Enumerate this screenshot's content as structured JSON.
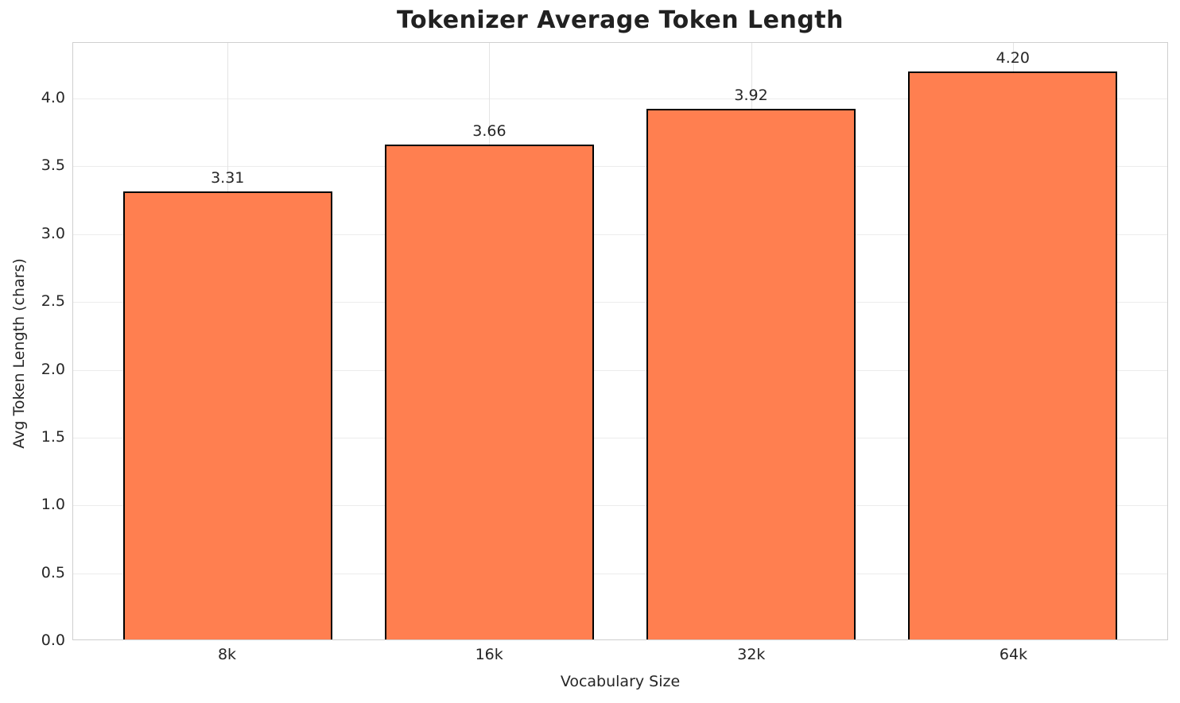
{
  "chart_data": {
    "type": "bar",
    "title": "Tokenizer Average Token Length",
    "xlabel": "Vocabulary Size",
    "ylabel": "Avg Token Length (chars)",
    "categories": [
      "8k",
      "16k",
      "32k",
      "64k"
    ],
    "values": [
      3.31,
      3.66,
      3.92,
      4.2
    ],
    "value_labels": [
      "3.31",
      "3.66",
      "3.92",
      "4.20"
    ],
    "ytick_labels": [
      "0.0",
      "0.5",
      "1.0",
      "1.5",
      "2.0",
      "2.5",
      "3.0",
      "3.5",
      "4.0"
    ],
    "yticks": [
      0.0,
      0.5,
      1.0,
      1.5,
      2.0,
      2.5,
      3.0,
      3.5,
      4.0
    ],
    "ylim": [
      0,
      4.41
    ],
    "xlim": [
      -0.59,
      3.59
    ],
    "bar_width": 0.8,
    "grid": true,
    "legend_position": "none",
    "colors": {
      "bar_fill": "#FF7F50",
      "bar_edge": "#000000",
      "grid_line_h": "#ececec",
      "grid_line_v": "#e4e4e4",
      "spine": "#cfcfcf",
      "text": "#262626",
      "title_text": "#212121",
      "background": "#ffffff"
    }
  }
}
